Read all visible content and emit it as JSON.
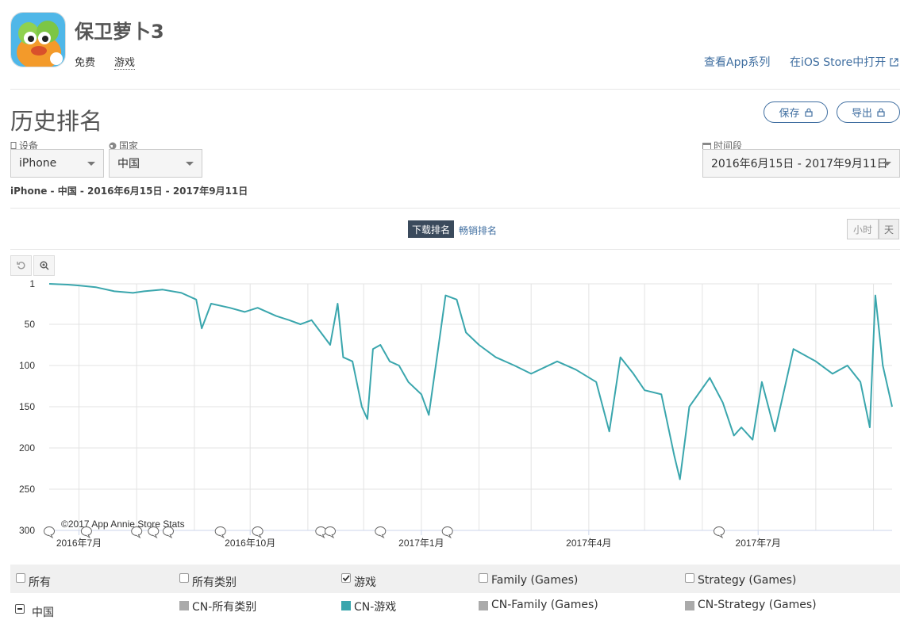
{
  "app": {
    "name": "保卫萝卜3",
    "price": "免费",
    "category": "游戏",
    "link_series": "查看App系列",
    "link_ios_store": "在iOS Store中打开"
  },
  "page": {
    "title": "历史排名",
    "save_label": "保存",
    "export_label": "导出"
  },
  "filters": {
    "device_label": "设备",
    "device_value": "iPhone",
    "country_label": "国家",
    "country_value": "中国",
    "period_label": "时间段",
    "period_value": "2016年6月15日 - 2017年9月11日"
  },
  "summary": "iPhone - 中国 - 2016年6月15日 - 2017年9月11日",
  "rank_tabs": {
    "active": "下载排名",
    "other": "畅销排名"
  },
  "granularity": {
    "hour": "小时",
    "day": "天",
    "selected": "天"
  },
  "chart_data": {
    "type": "line",
    "inverted_y": true,
    "ylim": [
      1,
      300
    ],
    "y_ticks": [
      "1",
      "50",
      "100",
      "150",
      "200",
      "250",
      "300"
    ],
    "x_tick_labels": [
      "2016年7月",
      "2016年10月",
      "2017年1月",
      "2017年4月",
      "2017年7月"
    ],
    "credit": "©2017 App Annie Store Stats",
    "line_color": "#3aa6ad",
    "series": [
      {
        "name": "CN-游戏",
        "x": [
          "2016-06-15",
          "2016-06-25",
          "2016-07-01",
          "2016-07-10",
          "2016-07-20",
          "2016-07-30",
          "2016-08-05",
          "2016-08-15",
          "2016-08-25",
          "2016-09-02",
          "2016-09-05",
          "2016-09-10",
          "2016-09-20",
          "2016-09-28",
          "2016-10-05",
          "2016-10-15",
          "2016-10-22",
          "2016-10-28",
          "2016-11-03",
          "2016-11-08",
          "2016-11-13",
          "2016-11-17",
          "2016-11-20",
          "2016-11-25",
          "2016-11-30",
          "2016-12-03",
          "2016-12-06",
          "2016-12-10",
          "2016-12-15",
          "2016-12-20",
          "2016-12-25",
          "2017-01-01",
          "2017-01-05",
          "2017-01-10",
          "2017-01-14",
          "2017-01-20",
          "2017-01-25",
          "2017-02-01",
          "2017-02-10",
          "2017-02-20",
          "2017-03-01",
          "2017-03-15",
          "2017-03-25",
          "2017-04-05",
          "2017-04-12",
          "2017-04-18",
          "2017-04-25",
          "2017-05-01",
          "2017-05-10",
          "2017-05-17",
          "2017-05-20",
          "2017-05-25",
          "2017-06-05",
          "2017-06-12",
          "2017-06-18",
          "2017-06-22",
          "2017-06-28",
          "2017-07-03",
          "2017-07-10",
          "2017-07-20",
          "2017-08-01",
          "2017-08-10",
          "2017-08-18",
          "2017-08-25",
          "2017-08-30",
          "2017-09-02",
          "2017-09-06",
          "2017-09-11"
        ],
        "values": [
          1,
          2,
          3,
          5,
          10,
          12,
          10,
          8,
          12,
          20,
          55,
          25,
          30,
          35,
          30,
          40,
          45,
          50,
          45,
          60,
          75,
          25,
          90,
          95,
          150,
          165,
          80,
          75,
          95,
          100,
          120,
          135,
          160,
          80,
          15,
          20,
          60,
          75,
          90,
          100,
          110,
          95,
          105,
          120,
          180,
          90,
          110,
          130,
          135,
          210,
          238,
          150,
          115,
          145,
          185,
          175,
          190,
          120,
          180,
          80,
          95,
          110,
          100,
          120,
          175,
          15,
          100,
          150
        ]
      }
    ],
    "event_marker_dates": [
      "2016-06-15",
      "2016-07-05",
      "2016-08-01",
      "2016-08-10",
      "2016-08-18",
      "2016-09-15",
      "2016-10-05",
      "2016-11-08",
      "2016-11-13",
      "2016-12-10",
      "2017-01-15",
      "2017-06-10"
    ]
  },
  "legend": {
    "row1": [
      {
        "label": "所有",
        "checked": false
      },
      {
        "label": "所有类别",
        "checked": false
      },
      {
        "label": "游戏",
        "checked": true
      },
      {
        "label": "Family (Games)",
        "checked": false
      },
      {
        "label": "Strategy (Games)",
        "checked": false
      }
    ],
    "row2_group": "中国",
    "row2": [
      {
        "label": "CN-所有类别",
        "color": "#aaaaaa"
      },
      {
        "label": "CN-游戏",
        "color": "#3aa6ad"
      },
      {
        "label": "CN-Family (Games)",
        "color": "#aaaaaa"
      },
      {
        "label": "CN-Strategy (Games)",
        "color": "#aaaaaa"
      }
    ]
  },
  "colors": {
    "accent": "#3f6ea0",
    "line": "#3aa6ad",
    "tab_active_bg": "#3a4a5c"
  }
}
